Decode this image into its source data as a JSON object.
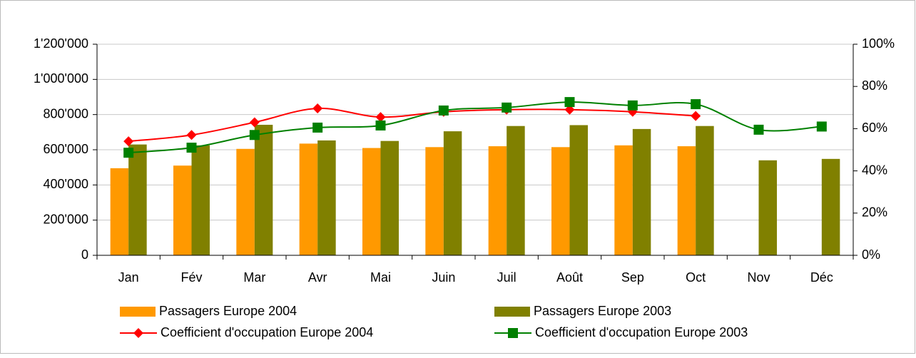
{
  "chart_data": {
    "type": "bar-line",
    "categories": [
      "Jan",
      "Fév",
      "Mar",
      "Avr",
      "Mai",
      "Juin",
      "Juil",
      "Août",
      "Sep",
      "Oct",
      "Nov",
      "Déc"
    ],
    "series": [
      {
        "name": "Passagers Europe 2004",
        "type": "bar",
        "color": "#ff9900",
        "values": [
          495000,
          510000,
          605000,
          635000,
          610000,
          615000,
          620000,
          615000,
          625000,
          620000,
          null,
          null
        ]
      },
      {
        "name": "Passagers Europe 2003",
        "type": "bar",
        "color": "#808000",
        "values": [
          630000,
          625000,
          742000,
          653000,
          650000,
          705000,
          735000,
          740000,
          718000,
          735000,
          540000,
          548000
        ]
      },
      {
        "name": "Coefficient d'occupation Europe 2004",
        "type": "line",
        "axis": "y2",
        "color": "#ff0000",
        "marker": "diamond",
        "values": [
          54,
          57,
          63,
          69.6,
          65.5,
          68,
          69,
          69,
          68,
          66,
          null,
          null
        ]
      },
      {
        "name": "Coefficient d'occupation Europe 2003",
        "type": "line",
        "axis": "y2",
        "color": "#008000",
        "marker": "square",
        "values": [
          48.6,
          51,
          57,
          60.5,
          61.5,
          68.6,
          70,
          72.6,
          71,
          71.6,
          59.5,
          61
        ]
      }
    ],
    "ylim": [
      0,
      1200000
    ],
    "yticks": [
      {
        "value": 0,
        "label": "0"
      },
      {
        "value": 200000,
        "label": "200'000"
      },
      {
        "value": 400000,
        "label": "400'000"
      },
      {
        "value": 600000,
        "label": "600'000"
      },
      {
        "value": 800000,
        "label": "800'000"
      },
      {
        "value": 1000000,
        "label": "1'000'000"
      },
      {
        "value": 1200000,
        "label": "1'200'000"
      }
    ],
    "y2lim": [
      0,
      100
    ],
    "y2ticks": [
      {
        "value": 0,
        "label": "0%"
      },
      {
        "value": 20,
        "label": "20%"
      },
      {
        "value": 40,
        "label": "40%"
      },
      {
        "value": 60,
        "label": "60%"
      },
      {
        "value": 80,
        "label": "80%"
      },
      {
        "value": 100,
        "label": "100%"
      }
    ],
    "grid": true
  }
}
